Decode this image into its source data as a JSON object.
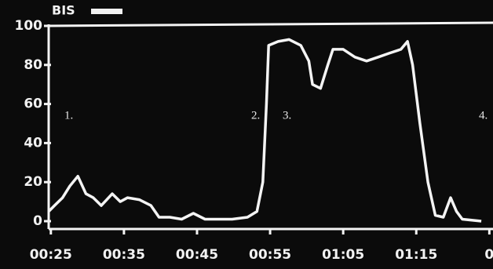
{
  "chart_data": {
    "type": "line",
    "title": "BIS",
    "annotations": [
      "1.",
      "2.",
      "3.",
      "4."
    ],
    "x": [
      24.7,
      25.5,
      26.6,
      27.6,
      28.7,
      29.8,
      30.8,
      31.9,
      33.4,
      34.5,
      35.5,
      37.1,
      38.7,
      39.8,
      41.3,
      42.9,
      44.5,
      46.1,
      47.6,
      49.8,
      51.9,
      53.2,
      54.0,
      54.5,
      54.8,
      56.1,
      57.6,
      59.2,
      60.3,
      60.8,
      61.9,
      62.9,
      63.6,
      65.0,
      66.6,
      68.2,
      69.8,
      71.3,
      72.9,
      73.8,
      74.5,
      75.5,
      76.6,
      77.6,
      78.7,
      79.7,
      80.5,
      81.3,
      83.9
    ],
    "series": [
      {
        "color": "#f4f4f4",
        "values": [
          5,
          8,
          12,
          18,
          23,
          14,
          12,
          8,
          14,
          10,
          12,
          11,
          8,
          2,
          2,
          1,
          4,
          1,
          1,
          1,
          2,
          5,
          20,
          60,
          90,
          92,
          93,
          90,
          82,
          70,
          68,
          80,
          88,
          88,
          84,
          82,
          84,
          86,
          88,
          92,
          80,
          50,
          20,
          3,
          2,
          12,
          5,
          1,
          0
        ]
      }
    ],
    "xlim": [
      24.7,
      85.5
    ],
    "xticks": [
      {
        "value": 25,
        "label": "00:25"
      },
      {
        "value": 35,
        "label": "00:35"
      },
      {
        "value": 45,
        "label": "00:45"
      },
      {
        "value": 55,
        "label": "00:55"
      },
      {
        "value": 65,
        "label": "01:05"
      },
      {
        "value": 75,
        "label": "01:15"
      },
      {
        "value": 85,
        "label": "0"
      }
    ],
    "ylim": [
      0,
      100
    ],
    "yticks": [
      0,
      20,
      40,
      60,
      80,
      100
    ]
  }
}
